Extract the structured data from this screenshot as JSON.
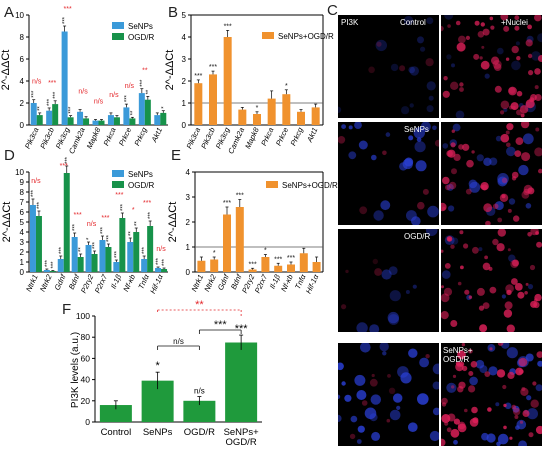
{
  "colors": {
    "senps": "#3b9ad9",
    "ogdr": "#17924a",
    "combo": "#f0922e",
    "combo_F": "#1f9a3c",
    "sig_red": "#e4262a",
    "sig_black": "#111111"
  },
  "panels": {
    "A": {
      "letter": "A",
      "ylabel": "2^-ΔΔCt",
      "legend": [
        "SeNPs",
        "OGD/R"
      ]
    },
    "B": {
      "letter": "B",
      "ylabel": "2^-ΔΔCt",
      "legend": [
        "SeNPs+OGD/R"
      ]
    },
    "C": {
      "letter": "C",
      "labels": [
        "PI3K",
        "Control",
        "+Nuclei",
        "SeNPs",
        "OGD/R",
        "SeNPs+\nOGD/R"
      ]
    },
    "D": {
      "letter": "D",
      "ylabel": "2^-ΔΔCt",
      "legend": [
        "SeNPs",
        "OGD/R"
      ]
    },
    "E": {
      "letter": "E",
      "ylabel": "2^-ΔΔCt",
      "legend": [
        "SeNPs+OGD/R"
      ]
    },
    "F": {
      "letter": "F",
      "ylabel": "PI3K levels (a.u.)"
    }
  },
  "chart_data": [
    {
      "panel": "A",
      "type": "bar",
      "categories": [
        "Pik3ca",
        "Pik3cb",
        "Pik3cg",
        "Camk2a",
        "Mapk8",
        "Prkca",
        "Prkce",
        "Prkcg",
        "Akt1"
      ],
      "series": [
        {
          "name": "SeNPs",
          "values": [
            2.0,
            1.3,
            8.5,
            1.2,
            0.4,
            0.9,
            1.6,
            2.9,
            0.9
          ],
          "errors": [
            0.3,
            0.25,
            0.5,
            0.2,
            0.1,
            0.2,
            0.3,
            0.4,
            0.2
          ],
          "sig": [
            "***",
            "***",
            "***",
            "",
            "",
            "",
            "***",
            "***",
            ""
          ],
          "red": [
            "n/s",
            "***",
            "***",
            "n/s",
            "n/s",
            "n/s",
            "n/s",
            "**",
            ""
          ]
        },
        {
          "name": "OGD/R",
          "values": [
            0.9,
            1.9,
            0.7,
            0.6,
            0.4,
            0.7,
            0.6,
            2.3,
            1.1
          ],
          "errors": [
            0.2,
            0.3,
            0.15,
            0.15,
            0.1,
            0.15,
            0.1,
            0.3,
            0.2
          ],
          "sig": [
            "**",
            "***",
            "***",
            "",
            "",
            "",
            "**",
            "**",
            "*"
          ]
        }
      ],
      "ylim": [
        0,
        10
      ],
      "yticks": [
        0,
        2,
        4,
        6,
        8,
        10
      ]
    },
    {
      "panel": "B",
      "type": "bar",
      "categories": [
        "Pik3ca",
        "Pik3cb",
        "Pik3cg",
        "Camk2a",
        "Mapk8",
        "Prkca",
        "Prkce",
        "Prkcg",
        "Akt1"
      ],
      "series": [
        {
          "name": "SeNPs+OGD/R",
          "values": [
            1.9,
            2.3,
            4.0,
            0.7,
            0.5,
            1.2,
            1.4,
            0.6,
            0.8
          ],
          "errors": [
            0.15,
            0.15,
            0.3,
            0.1,
            0.1,
            0.35,
            0.2,
            0.1,
            0.15
          ],
          "sig": [
            "***",
            "***",
            "***",
            "",
            "*",
            "",
            "*",
            "",
            ""
          ]
        }
      ],
      "reference_line": 1,
      "ylim": [
        0,
        5
      ],
      "yticks": [
        0,
        1,
        2,
        3,
        4,
        5
      ]
    },
    {
      "panel": "D",
      "type": "bar",
      "categories": [
        "Ntrk1",
        "Ntrk2",
        "Gdnf",
        "Bdnf",
        "P2ry2",
        "P2rx7",
        "Il-1β",
        "Nf-κb",
        "Tnfα",
        "Hif-1α"
      ],
      "series": [
        {
          "name": "SeNPs",
          "values": [
            6.7,
            0.2,
            1.3,
            3.5,
            2.7,
            3.2,
            1.0,
            3.0,
            1.3,
            0.4
          ],
          "errors": [
            0.6,
            0.1,
            0.3,
            0.4,
            0.3,
            0.4,
            0.2,
            0.4,
            0.3,
            0.1
          ],
          "sig": [
            "***",
            "***",
            "***",
            "***",
            "*",
            "***",
            "***",
            "**",
            "***",
            "***"
          ],
          "red": [
            "n/s",
            "",
            "***",
            "***",
            "n/s",
            "***",
            "***",
            "*",
            "***",
            "n/s"
          ]
        },
        {
          "name": "OGD/R",
          "values": [
            5.6,
            0.1,
            9.9,
            1.5,
            1.8,
            2.5,
            5.4,
            4.0,
            4.6,
            0.3
          ],
          "errors": [
            0.5,
            0.05,
            0.7,
            0.3,
            0.3,
            0.3,
            0.5,
            0.4,
            0.5,
            0.1
          ],
          "sig": [
            "***",
            "***",
            "***",
            "**",
            "***",
            "***",
            "***",
            "**",
            "***",
            "***"
          ]
        }
      ],
      "ylim": [
        0,
        10
      ],
      "yticks": [
        0,
        1,
        2,
        3,
        4,
        5,
        6,
        7,
        8,
        9,
        10
      ]
    },
    {
      "panel": "E",
      "type": "bar",
      "categories": [
        "Ntrk1",
        "Ntrk2",
        "Gdnf",
        "Bdnf",
        "P2ry2",
        "P2rx7",
        "Il-1β",
        "Nf-κb",
        "Tnfα",
        "Hif-1α"
      ],
      "series": [
        {
          "name": "SeNPs+OGD/R",
          "values": [
            0.45,
            0.5,
            2.3,
            2.6,
            0.1,
            0.6,
            0.25,
            0.3,
            0.75,
            0.4
          ],
          "errors": [
            0.15,
            0.1,
            0.3,
            0.3,
            0.05,
            0.1,
            0.1,
            0.1,
            0.2,
            0.2
          ],
          "sig": [
            "",
            "*",
            "***",
            "***",
            "***",
            "*",
            "***",
            "***",
            "",
            ""
          ]
        }
      ],
      "reference_line": 1,
      "ylim": [
        0,
        4
      ],
      "yticks": [
        0,
        1,
        2,
        3,
        4
      ]
    },
    {
      "panel": "F",
      "type": "bar",
      "categories": [
        "Control",
        "SeNPs",
        "OGD/R",
        "SeNPs+\nOGD/R"
      ],
      "values": [
        16,
        39,
        20,
        75
      ],
      "errors": [
        4,
        8,
        4,
        7
      ],
      "sig": [
        "",
        "*",
        "n/s",
        "***"
      ],
      "ylabel": "PI3K levels (a.u.)",
      "ylim": [
        0,
        100
      ],
      "yticks": [
        0,
        20,
        40,
        60,
        80,
        100
      ],
      "brackets": [
        {
          "from": 1,
          "to": 2,
          "label": "n/s",
          "color": "#111111"
        },
        {
          "from": 2,
          "to": 3,
          "label": "***",
          "color": "#111111"
        },
        {
          "from": 1,
          "to": 3,
          "label": "**",
          "color": "#e4262a",
          "dotted": true
        }
      ]
    }
  ]
}
